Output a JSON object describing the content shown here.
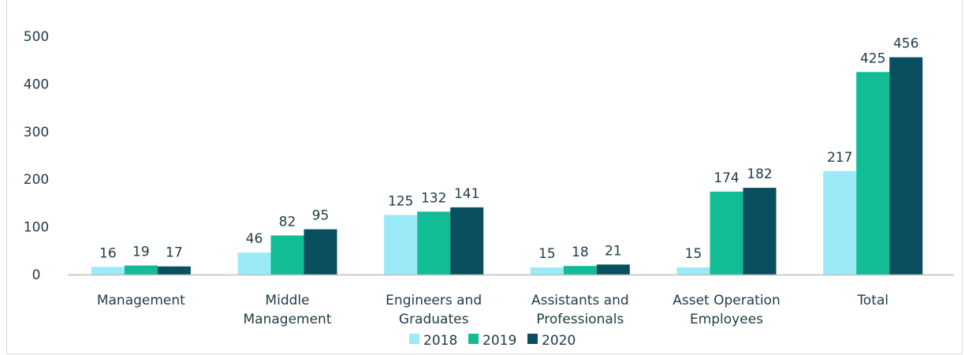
{
  "chart_data": {
    "type": "bar",
    "categories": [
      [
        "Management"
      ],
      [
        "Middle",
        "Management"
      ],
      [
        "Engineers and",
        "Graduates"
      ],
      [
        "Assistants and",
        "Professionals"
      ],
      [
        "Asset Operation",
        "Employees"
      ],
      [
        "Total"
      ]
    ],
    "series": [
      {
        "name": "2018",
        "color": "#9beaf8",
        "values": [
          16,
          46,
          125,
          15,
          15,
          217
        ]
      },
      {
        "name": "2019",
        "color": "#12bd96",
        "values": [
          19,
          82,
          132,
          18,
          174,
          425
        ]
      },
      {
        "name": "2020",
        "color": "#0a4f5f",
        "values": [
          17,
          95,
          141,
          21,
          182,
          456
        ]
      }
    ],
    "yticks": [
      "0",
      "100",
      "200",
      "300",
      "400",
      "500"
    ],
    "ylim": [
      0,
      500
    ],
    "legend": "bottom",
    "grid": false,
    "title": "",
    "xlabel": "",
    "ylabel": ""
  }
}
